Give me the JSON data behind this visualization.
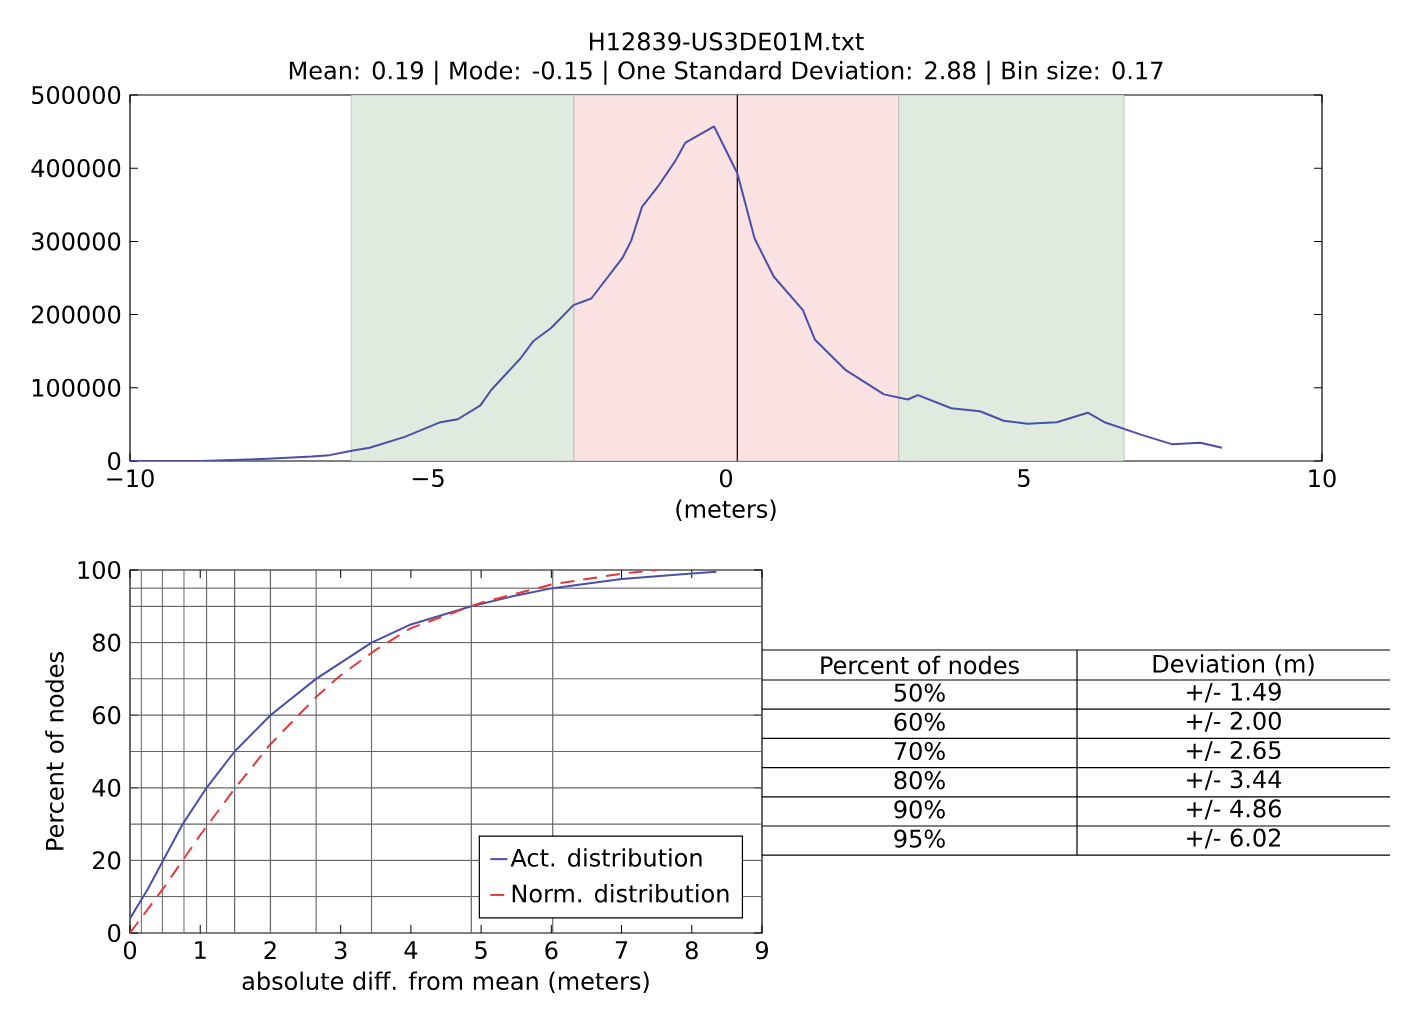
{
  "chart_data": [
    {
      "type": "line",
      "title": "H12839-US3DE01M.txt",
      "subtitle": "Mean: 0.19 | Mode: -0.15 | One Standard Deviation: 2.88 | Bin size: 0.17",
      "xlabel": "(meters)",
      "xlim": [
        -10,
        10
      ],
      "xticks": [
        {
          "value": -10,
          "label": "−10"
        },
        {
          "value": -5,
          "label": "−5"
        },
        0,
        5,
        10
      ],
      "ylim": [
        0,
        500000
      ],
      "yticks": [
        0,
        100000,
        200000,
        300000,
        400000,
        500000
      ],
      "bands": [
        {
          "axis": "x",
          "from": -6.29,
          "to": -2.55,
          "color": "#e0ebe0"
        },
        {
          "axis": "x",
          "from": -2.55,
          "to": 2.9,
          "color": "#fae1e2"
        },
        {
          "axis": "x",
          "from": 2.9,
          "to": 6.68,
          "color": "#e0ebe0"
        }
      ],
      "ref_lines": [
        {
          "axis": "x",
          "value": 0.19,
          "color": "#000000"
        }
      ],
      "series": [
        {
          "color": "#4a4fa8",
          "x": [
            -10,
            -8.81,
            -7.69,
            -6.95,
            -6.65,
            -6.28,
            -5.98,
            -5.39,
            -4.79,
            -4.5,
            -4.12,
            -3.94,
            -3.45,
            -3.23,
            -2.93,
            -2.56,
            -2.26,
            -1.74,
            -1.59,
            -1.41,
            -1.15,
            -0.85,
            -0.68,
            -0.2,
            0.19,
            0.48,
            0.8,
            1.29,
            1.49,
            2.01,
            2.65,
            3.05,
            3.22,
            3.78,
            4.26,
            4.66,
            5.06,
            5.55,
            6.07,
            6.35,
            7.0,
            7.48,
            7.96,
            8.32
          ],
          "values": [
            0,
            0,
            3000,
            6000,
            8000,
            14000,
            18000,
            33000,
            53000,
            57000,
            76000,
            97000,
            140000,
            164000,
            182000,
            213000,
            222000,
            277000,
            301000,
            347000,
            374000,
            410000,
            435000,
            457000,
            393000,
            304000,
            252000,
            206000,
            166000,
            124000,
            91000,
            84000,
            90000,
            72000,
            68000,
            55000,
            51000,
            53000,
            66000,
            53000,
            35000,
            23000,
            25000,
            18000
          ]
        }
      ]
    },
    {
      "type": "line",
      "xlabel": "absolute diff. from mean (meters)",
      "ylabel": "Percent of nodes",
      "xlim": [
        0,
        9
      ],
      "xticks": [
        0,
        1,
        2,
        3,
        4,
        5,
        6,
        7,
        8,
        9
      ],
      "ylim": [
        0,
        100
      ],
      "yticks": [
        0,
        20,
        40,
        60,
        80,
        100
      ],
      "legend": "bottom right",
      "ref_lines": [
        {
          "axis": "x",
          "value": 0.16,
          "color": "#666666"
        },
        {
          "axis": "x",
          "value": 0.46,
          "color": "#666666"
        },
        {
          "axis": "x",
          "value": 0.77,
          "color": "#666666"
        },
        {
          "axis": "x",
          "value": 1.09,
          "color": "#666666"
        },
        {
          "axis": "x",
          "value": 1.49,
          "color": "#666666"
        },
        {
          "axis": "x",
          "value": 2.0,
          "color": "#666666"
        },
        {
          "axis": "x",
          "value": 2.65,
          "color": "#666666"
        },
        {
          "axis": "x",
          "value": 3.44,
          "color": "#666666"
        },
        {
          "axis": "x",
          "value": 4.86,
          "color": "#666666"
        },
        {
          "axis": "x",
          "value": 6.02,
          "color": "#666666"
        },
        {
          "axis": "y",
          "value": 10,
          "color": "#666666"
        },
        {
          "axis": "y",
          "value": 20,
          "color": "#666666"
        },
        {
          "axis": "y",
          "value": 30,
          "color": "#666666"
        },
        {
          "axis": "y",
          "value": 40,
          "color": "#666666"
        },
        {
          "axis": "y",
          "value": 50,
          "color": "#666666"
        },
        {
          "axis": "y",
          "value": 60,
          "color": "#666666"
        },
        {
          "axis": "y",
          "value": 70,
          "color": "#666666"
        },
        {
          "axis": "y",
          "value": 80,
          "color": "#666666"
        },
        {
          "axis": "y",
          "value": 90,
          "color": "#666666"
        },
        {
          "axis": "y",
          "value": 95,
          "color": "#666666"
        }
      ],
      "series": [
        {
          "name": "Act. distribution",
          "color": "#4a4fa8",
          "line_style": "solid",
          "x": [
            0,
            0.25,
            0.5,
            0.75,
            1.09,
            1.49,
            2.0,
            2.65,
            3.44,
            4.0,
            4.86,
            5.5,
            6.02,
            7.0,
            8.0,
            8.35
          ],
          "values": [
            4,
            12,
            21,
            30,
            40,
            50,
            60,
            70,
            80,
            85,
            90,
            93,
            95,
            97.5,
            99,
            99.5
          ]
        },
        {
          "name": "Norm. distribution",
          "color": "#e03c3c",
          "line_style": "dashed",
          "x": [
            0,
            0.5,
            1.0,
            1.5,
            2.0,
            2.65,
            3.0,
            3.5,
            4.0,
            5.0,
            6.0,
            7.0,
            7.5
          ],
          "values": [
            0,
            13,
            27,
            40,
            52,
            65,
            71,
            78,
            84,
            91,
            96,
            99,
            100
          ]
        }
      ]
    },
    {
      "type": "other",
      "xlabel": "Percent of nodes",
      "ylabel": "Deviation (m)",
      "categories": [
        "50%",
        "60%",
        "70%",
        "80%",
        "90%",
        "95%"
      ],
      "value_labels": [
        "+/- 1.49",
        "+/- 2.00",
        "+/- 2.65",
        "+/- 3.44",
        "+/- 4.86",
        "+/- 6.02"
      ]
    }
  ]
}
